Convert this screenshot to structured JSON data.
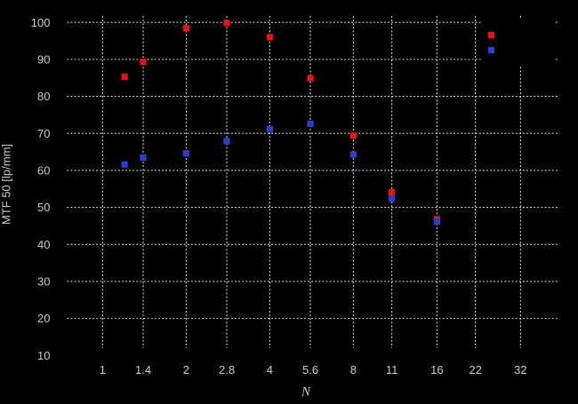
{
  "page": {
    "background": "#000000"
  },
  "chart_data": {
    "type": "scatter",
    "title": "",
    "xlabel": "N",
    "ylabel": "MTF 50 [lp/mm]",
    "x_scale": "log2",
    "xlim": [
      0.75,
      44
    ],
    "ylim": [
      10,
      101.8
    ],
    "grid": "dotted",
    "x_ticks": [
      1,
      1.4,
      2,
      2.8,
      4,
      5.6,
      8,
      11,
      16,
      22,
      32
    ],
    "x_tick_labels": [
      "1",
      "1.4",
      "2",
      "2.8",
      "4",
      "5.6",
      "8",
      "11",
      "16",
      "22",
      "32"
    ],
    "y_ticks": [
      10,
      20,
      30,
      40,
      50,
      60,
      70,
      80,
      90,
      100
    ],
    "y_tick_labels": [
      "10",
      "20",
      "30",
      "40",
      "50",
      "60",
      "70",
      "80",
      "90",
      "100"
    ],
    "x": [
      1.2,
      1.4,
      2,
      2.8,
      4,
      5.6,
      8,
      11,
      16
    ],
    "series": [
      {
        "name": "",
        "marker": "filled-square",
        "color": "#ee0f0f",
        "values": [
          85.3,
          89.3,
          98.4,
          99.8,
          96.0,
          84.9,
          69.4,
          54.1,
          46.8
        ]
      },
      {
        "name": "",
        "marker": "filled-square",
        "color": "#2440d2",
        "values": [
          61.6,
          63.5,
          64.6,
          67.9,
          71.2,
          72.6,
          64.3,
          52.3,
          46.2
        ]
      }
    ],
    "legend": {
      "position": "top-right",
      "box_fill": "#000000",
      "entries": [
        {
          "label": "",
          "marker": "filled-square",
          "color": "#ee0f0f"
        },
        {
          "label": "",
          "marker": "filled-square",
          "color": "#2440d2"
        }
      ]
    },
    "colors": {
      "background": "#000000",
      "grid": "#d9d9d9",
      "text": "#c9c9c9"
    }
  }
}
